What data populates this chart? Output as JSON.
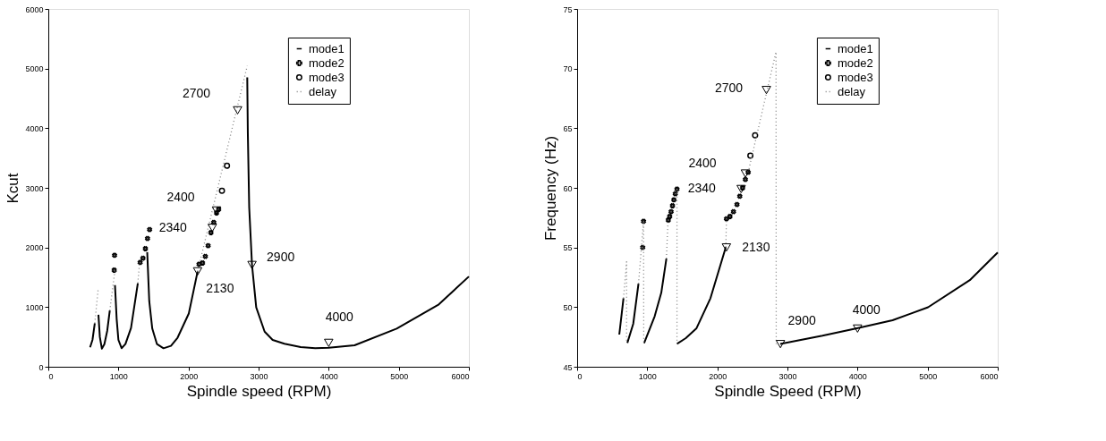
{
  "chart_data": [
    {
      "type": "line",
      "xlabel": "Spindle speed (RPM)",
      "ylabel": "Kcut",
      "xlim": [
        0,
        6000
      ],
      "xticks": [
        0,
        1000,
        2000,
        3000,
        4000,
        5000,
        6000
      ],
      "ylim": [
        0,
        6000
      ],
      "yticks": [
        0,
        1000,
        2000,
        3000,
        4000,
        5000,
        6000
      ],
      "legend": "top right",
      "series": [
        {
          "name": "mode1",
          "type": "line",
          "line_style": "solid",
          "color": "#000000",
          "x": [
            596,
            630,
            663,
            690,
            715,
            735,
            764,
            800,
            840,
            877,
            910,
            951,
            975,
            1000,
            1045,
            1100,
            1180,
            1277,
            1350,
            1411,
            1440,
            1483,
            1550,
            1643,
            1750,
            1844,
            2004,
            2130,
            2500,
            2838,
            2846,
            2866,
            2906,
            2966,
            3086,
            3200,
            3367,
            3600,
            3808,
            4000,
            4369,
            4970,
            5571,
            6000
          ],
          "values": [
            327,
            450,
            729,
            null,
            871,
            500,
            303,
            380,
            600,
            942,
            null,
            1368,
            800,
            450,
            312,
            380,
            650,
            1402,
            null,
            1922,
            1100,
            640,
            380,
            310,
            350,
            487,
            893,
            1600,
            null,
            4853,
            3939,
            2670,
            1706,
            995,
            589,
            450,
            386,
            330,
            310,
            320,
            360,
            640,
            1046,
            1513
          ]
        },
        {
          "name": "mode2",
          "type": "scatter",
          "marker": "cross",
          "color": "#000000",
          "x": [
            940,
            945,
            1310,
            1350,
            1385,
            1415,
            1445,
            2150,
            2200,
            2240,
            2280,
            2320,
            2360,
            2400,
            2430
          ],
          "values": [
            1620,
            1870,
            1750,
            1820,
            1980,
            2150,
            2300,
            1720,
            1740,
            1850,
            2030,
            2250,
            2420,
            2580,
            2640
          ]
        },
        {
          "name": "mode3",
          "type": "scatter",
          "marker": "circle",
          "color": "#000000",
          "x": [
            2477,
            2549
          ],
          "values": [
            2950,
            3370
          ]
        },
        {
          "name": "delay",
          "type": "line",
          "line_style": "dotted",
          "color": "#808080",
          "x": [
            663,
            713,
            800,
            877,
            951,
            1100,
            1277,
            1303,
            1700,
            2130,
            2838
          ],
          "values": [
            729,
            1325,
            null,
            942,
            1620,
            null,
            1402,
            1756,
            null,
            1600,
            5046
          ]
        },
        {
          "type": "scatter",
          "marker": "triangle",
          "color": "#000000",
          "x": [
            2700,
            2400,
            2340,
            2130,
            2906,
            4000
          ],
          "values": [
            4300,
            2620,
            2330,
            1600,
            1706,
            400
          ]
        }
      ],
      "annotations": [
        {
          "text": "2700",
          "x": 2700,
          "y": 4300
        },
        {
          "text": "2400",
          "x": 2400,
          "y": 2620
        },
        {
          "text": "2340",
          "x": 2340,
          "y": 2330
        },
        {
          "text": "2130",
          "x": 2130,
          "y": 1600
        },
        {
          "text": "2900",
          "x": 2906,
          "y": 1706
        },
        {
          "text": "4000",
          "x": 4000,
          "y": 400
        }
      ]
    },
    {
      "type": "line",
      "xlabel": "Spindle Speed (RPM)",
      "ylabel": "Frequency (Hz)",
      "xlim": [
        0,
        6000
      ],
      "xticks": [
        0,
        1000,
        2000,
        3000,
        4000,
        5000,
        6000
      ],
      "ylim": [
        45,
        75
      ],
      "yticks": [
        45,
        50,
        55,
        60,
        65,
        70,
        75
      ],
      "legend": "top right",
      "series": [
        {
          "name": "mode1",
          "type": "line",
          "line_style": "solid",
          "color": "#000000",
          "x": [
            601,
            661,
            690,
            716,
            800,
            875,
            910,
            955,
            1106,
            1200,
            1273,
            1350,
            1424,
            1550,
            1703,
            1902,
            2121,
            2500,
            2897,
            3500,
            3991,
            4500,
            5006,
            5602,
            6000
          ],
          "values": [
            47.7,
            50.75,
            null,
            47.0,
            48.6,
            51.96,
            null,
            46.97,
            49.23,
            51.2,
            54.07,
            null,
            46.92,
            47.4,
            48.23,
            50.75,
            55.03,
            null,
            46.92,
            47.6,
            48.23,
            48.9,
            49.99,
            52.26,
            54.58
          ]
        },
        {
          "name": "mode2",
          "type": "scatter",
          "marker": "cross",
          "color": "#000000",
          "x": [
            935,
            947,
            1300,
            1320,
            1340,
            1360,
            1380,
            1400,
            1424,
            2130,
            2180,
            2230,
            2280,
            2320,
            2360,
            2400,
            2440
          ],
          "values": [
            55.0,
            57.2,
            57.3,
            57.6,
            58.0,
            58.5,
            59.0,
            59.5,
            59.9,
            57.4,
            57.6,
            58.0,
            58.6,
            59.3,
            60.0,
            60.7,
            61.3
          ]
        },
        {
          "name": "mode3",
          "type": "scatter",
          "marker": "circle",
          "color": "#000000",
          "x": [
            2471,
            2539
          ],
          "values": [
            62.7,
            64.4
          ]
        },
        {
          "name": "delay",
          "type": "line",
          "line_style": "dotted",
          "color": "#808080",
          "x": [
            661,
            705,
            705,
            800,
            875,
            947,
            950,
            1100,
            1273,
            1297,
            1350,
            1424,
            1424,
            1800,
            2121,
            2130,
            2300,
            2440,
            2837,
            2840
          ],
          "values": [
            50.75,
            53.8,
            47.0,
            null,
            51.96,
            57.18,
            47.0,
            null,
            54.07,
            57.3,
            null,
            59.87,
            46.92,
            null,
            55.03,
            57.4,
            null,
            61.3,
            71.4,
            46.92
          ]
        },
        {
          "type": "scatter",
          "marker": "triangle",
          "color": "#000000",
          "x": [
            2700,
            2400,
            2340,
            2130,
            2900,
            4000
          ],
          "values": [
            68.2,
            61.2,
            59.9,
            55.0,
            46.9,
            48.2
          ]
        }
      ],
      "annotations": [
        {
          "text": "2700",
          "x": 2700,
          "y": 68.2
        },
        {
          "text": "2400",
          "x": 2400,
          "y": 61.2
        },
        {
          "text": "2340",
          "x": 2340,
          "y": 59.9
        },
        {
          "text": "2130",
          "x": 2130,
          "y": 55.0
        },
        {
          "text": "2900",
          "x": 2900,
          "y": 46.9
        },
        {
          "text": "4000",
          "x": 4000,
          "y": 48.2
        }
      ]
    }
  ]
}
